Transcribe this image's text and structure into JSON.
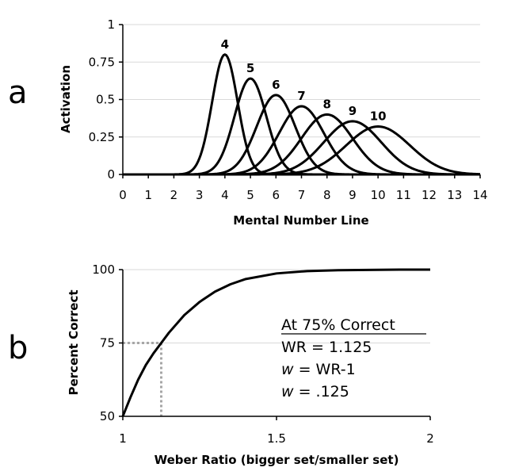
{
  "panel_labels": {
    "a": "a",
    "b": "b"
  },
  "chart_data": [
    {
      "type": "line",
      "xlabel": "Mental Number Line",
      "ylabel": "Activation",
      "xlim": [
        0,
        14
      ],
      "ylim": [
        0,
        1
      ],
      "x_ticks": [
        "0",
        "1",
        "2",
        "3",
        "4",
        "5",
        "6",
        "7",
        "8",
        "9",
        "10",
        "11",
        "12",
        "13",
        "14"
      ],
      "y_ticks": [
        "0",
        "0.25",
        "0.5",
        "0.75",
        "1"
      ],
      "grid": true,
      "series": [
        {
          "name": "4",
          "mean": 4,
          "peak": 0.8
        },
        {
          "name": "5",
          "mean": 5,
          "peak": 0.64
        },
        {
          "name": "6",
          "mean": 6,
          "peak": 0.53
        },
        {
          "name": "7",
          "mean": 7,
          "peak": 0.455
        },
        {
          "name": "8",
          "mean": 8,
          "peak": 0.4
        },
        {
          "name": "9",
          "mean": 9,
          "peak": 0.355
        },
        {
          "name": "10",
          "mean": 10,
          "peak": 0.32
        }
      ]
    },
    {
      "type": "line",
      "xlabel": "Weber Ratio (bigger set/smaller set)",
      "ylabel": "Percent Correct",
      "xlim": [
        1,
        2
      ],
      "ylim": [
        50,
        100
      ],
      "x_ticks": [
        "1",
        "1.5",
        "2"
      ],
      "y_ticks": [
        "50",
        "75",
        "100"
      ],
      "grid": true,
      "series": [
        {
          "name": "",
          "x": [
            1.0,
            1.025,
            1.05,
            1.075,
            1.1,
            1.125,
            1.15,
            1.2,
            1.25,
            1.3,
            1.35,
            1.4,
            1.5,
            1.6,
            1.7,
            1.8,
            1.9,
            2.0
          ],
          "y": [
            50,
            56.5,
            62.5,
            67.5,
            71.5,
            75,
            78.5,
            84.5,
            89,
            92.5,
            95,
            96.8,
            98.7,
            99.5,
            99.8,
            99.9,
            100,
            100
          ]
        }
      ],
      "reference_point": {
        "x": 1.125,
        "y": 75
      },
      "annotation": [
        "At 75% Correct",
        "WR = 1.125",
        "w = WR-1",
        "w = .125"
      ]
    }
  ]
}
